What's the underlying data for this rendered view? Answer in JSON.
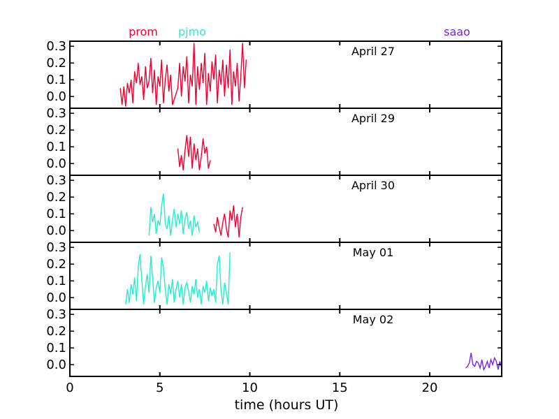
{
  "chart_data": {
    "type": "line",
    "xlabel": "time (hours UT)",
    "xlim": [
      0,
      24
    ],
    "ylim": [
      -0.07,
      0.33
    ],
    "xticks": [
      "0",
      "5",
      "10",
      "15",
      "20"
    ],
    "yticks": [
      "0.0",
      "0.1",
      "0.2",
      "0.3"
    ],
    "legend": [
      {
        "name": "prom",
        "color": "#ee0033"
      },
      {
        "name": "pjmo",
        "color": "#22eecc"
      },
      {
        "name": "saao",
        "color": "#7722ee"
      }
    ],
    "panels": [
      {
        "title": "April 27",
        "series": [
          {
            "name": "prom",
            "color": "#ee0033",
            "x": [
              2.8,
              2.9,
              3.0,
              3.1,
              3.2,
              3.3,
              3.4,
              3.5,
              3.6,
              3.7,
              3.8,
              3.9,
              4.0,
              4.1,
              4.2,
              4.3,
              4.4,
              4.5,
              4.6,
              4.7,
              4.8,
              4.9,
              5.0,
              5.1,
              5.2,
              5.3,
              5.4,
              5.5,
              5.6,
              5.7,
              6.0,
              6.1,
              6.2,
              6.3,
              6.4,
              6.5,
              6.6,
              6.7,
              6.8,
              6.9,
              7.0,
              7.1,
              7.2,
              7.3,
              7.4,
              7.5,
              7.6,
              7.7,
              7.8,
              7.9,
              8.0,
              8.1,
              8.2,
              8.3,
              8.4,
              8.5,
              8.6,
              8.7,
              8.8,
              8.9,
              9.0,
              9.1,
              9.2,
              9.3,
              9.4,
              9.5,
              9.6,
              9.7,
              9.8
            ],
            "y": [
              0.05,
              -0.05,
              0.06,
              -0.06,
              0.08,
              0.02,
              0.1,
              -0.04,
              0.15,
              0.08,
              0.2,
              0.07,
              0.12,
              -0.02,
              0.18,
              0.05,
              0.09,
              0.23,
              0.02,
              0.16,
              -0.05,
              0.12,
              0.06,
              0.22,
              -0.04,
              0.1,
              0.19,
              0.03,
              0.13,
              -0.05,
              0.05,
              0.2,
              0.0,
              0.18,
              0.09,
              0.24,
              -0.04,
              0.13,
              0.06,
              0.32,
              -0.05,
              0.18,
              0.04,
              0.2,
              0.08,
              0.26,
              -0.05,
              0.14,
              0.03,
              0.21,
              0.1,
              0.25,
              -0.04,
              0.16,
              0.07,
              0.22,
              0.0,
              0.19,
              0.05,
              0.28,
              -0.05,
              0.15,
              0.06,
              0.2,
              -0.03,
              0.12,
              0.32,
              0.05,
              0.22
            ]
          }
        ]
      },
      {
        "title": "April 29",
        "series": [
          {
            "name": "prom",
            "color": "#ee0033",
            "x": [
              6.0,
              6.1,
              6.2,
              6.3,
              6.4,
              6.5,
              6.6,
              6.7,
              6.8,
              6.9,
              7.0,
              7.1,
              7.2,
              7.3,
              7.4,
              7.5,
              7.6,
              7.7,
              7.8
            ],
            "y": [
              0.09,
              -0.02,
              0.05,
              -0.04,
              0.08,
              0.17,
              0.04,
              0.16,
              -0.03,
              0.12,
              0.02,
              0.09,
              -0.04,
              0.04,
              0.15,
              0.06,
              0.1,
              -0.03,
              0.02
            ]
          }
        ]
      },
      {
        "title": "April 30",
        "series": [
          {
            "name": "pjmo",
            "color": "#22eecc",
            "x": [
              4.4,
              4.5,
              4.6,
              4.7,
              4.8,
              4.9,
              5.0,
              5.1,
              5.2,
              5.3,
              5.4,
              5.5,
              5.6,
              5.7,
              5.8,
              5.9,
              6.0,
              6.1,
              6.2,
              6.3,
              6.4,
              6.5,
              6.6,
              6.7,
              6.8,
              6.9,
              7.0,
              7.1,
              7.2
            ],
            "y": [
              -0.03,
              0.14,
              0.05,
              0.1,
              -0.02,
              0.06,
              0.03,
              0.15,
              0.22,
              0.04,
              0.01,
              0.09,
              -0.03,
              0.06,
              0.13,
              0.02,
              0.1,
              0.04,
              0.12,
              -0.02,
              0.07,
              0.11,
              0.01,
              0.06,
              -0.03,
              0.09,
              0.02,
              0.05,
              -0.01
            ]
          },
          {
            "name": "prom",
            "color": "#ee0033",
            "x": [
              8.0,
              8.1,
              8.2,
              8.3,
              8.4,
              8.5,
              8.6,
              8.7,
              8.8,
              8.9,
              9.0,
              9.1,
              9.2,
              9.3,
              9.4,
              9.5,
              9.6
            ],
            "y": [
              0.04,
              -0.01,
              0.08,
              0.02,
              -0.03,
              0.05,
              0.1,
              0.01,
              -0.04,
              0.12,
              0.06,
              0.15,
              0.02,
              0.1,
              -0.04,
              0.08,
              0.14
            ]
          }
        ]
      },
      {
        "title": "May 01",
        "series": [
          {
            "name": "pjmo",
            "color": "#22eecc",
            "x": [
              3.1,
              3.2,
              3.3,
              3.4,
              3.5,
              3.6,
              3.7,
              3.8,
              3.9,
              4.0,
              4.1,
              4.2,
              4.3,
              4.4,
              4.5,
              4.6,
              4.7,
              4.8,
              4.9,
              5.0,
              5.1,
              5.2,
              5.3,
              5.4,
              5.5,
              5.6,
              5.7,
              5.8,
              5.9,
              6.0,
              6.1,
              6.2,
              6.3,
              6.4,
              6.5,
              6.6,
              6.7,
              6.8,
              6.9,
              7.0,
              7.1,
              7.2,
              7.3,
              7.4,
              7.5,
              7.6,
              7.7,
              7.8,
              7.9,
              8.0,
              8.1,
              8.2,
              8.3,
              8.4,
              8.5,
              8.6,
              8.7,
              8.8,
              8.9
            ],
            "y": [
              -0.04,
              0.05,
              -0.03,
              0.08,
              0.02,
              0.12,
              -0.02,
              0.18,
              0.26,
              0.1,
              -0.04,
              0.07,
              0.14,
              0.03,
              0.25,
              0.12,
              -0.03,
              0.06,
              0.1,
              0.03,
              0.24,
              0.18,
              0.05,
              -0.04,
              0.08,
              0.02,
              0.11,
              -0.03,
              0.05,
              0.1,
              0.0,
              0.08,
              -0.04,
              0.06,
              0.09,
              0.04,
              -0.03,
              0.07,
              0.02,
              0.11,
              0.0,
              0.05,
              -0.04,
              0.07,
              0.03,
              0.1,
              -0.02,
              0.06,
              0.01,
              0.05,
              -0.03,
              0.2,
              0.25,
              0.04,
              -0.04,
              0.09,
              0.03,
              -0.04,
              0.27
            ]
          }
        ]
      },
      {
        "title": "May 02",
        "series": [
          {
            "name": "saao",
            "color": "#7722ee",
            "x": [
              22.0,
              22.1,
              22.2,
              22.3,
              22.4,
              22.5,
              22.6,
              22.7,
              22.8,
              22.9,
              23.0,
              23.1,
              23.2,
              23.3,
              23.4,
              23.5,
              23.6,
              23.7,
              23.8,
              23.9,
              24.0
            ],
            "y": [
              -0.02,
              -0.01,
              0.01,
              0.07,
              0.0,
              -0.01,
              0.02,
              0.01,
              -0.02,
              0.03,
              -0.03,
              -0.01,
              0.02,
              -0.02,
              0.03,
              0.0,
              0.04,
              0.02,
              -0.03,
              0.02,
              -0.02
            ]
          }
        ]
      }
    ]
  }
}
